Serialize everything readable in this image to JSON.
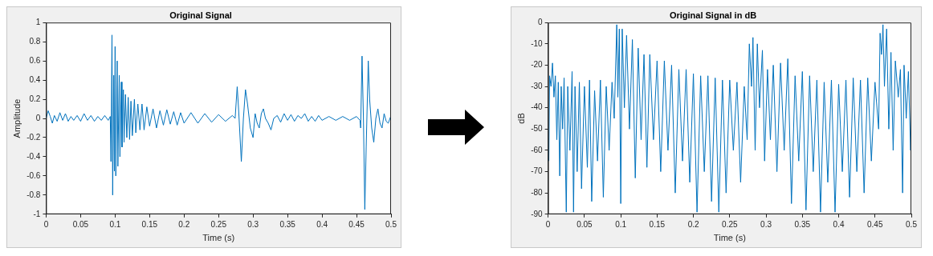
{
  "chart_data": [
    {
      "type": "line",
      "title": "Original Signal",
      "xlabel": "Time (s)",
      "ylabel": "Amplitude",
      "color": "#0072bd",
      "xlim": [
        0,
        0.5
      ],
      "ylim": [
        -1,
        1
      ],
      "xticks": [
        0,
        0.05,
        0.1,
        0.15,
        0.2,
        0.25,
        0.3,
        0.35,
        0.4,
        0.45,
        0.5
      ],
      "yticks": [
        -1,
        -0.8,
        -0.6,
        -0.4,
        -0.2,
        0,
        0.2,
        0.4,
        0.6,
        0.8,
        1
      ],
      "x": [
        0,
        0.003,
        0.006,
        0.009,
        0.012,
        0.016,
        0.02,
        0.024,
        0.028,
        0.032,
        0.036,
        0.04,
        0.045,
        0.05,
        0.055,
        0.06,
        0.065,
        0.07,
        0.075,
        0.08,
        0.085,
        0.09,
        0.093,
        0.094,
        0.0955,
        0.0965,
        0.098,
        0.099,
        0.1,
        0.101,
        0.103,
        0.104,
        0.106,
        0.107,
        0.109,
        0.11,
        0.112,
        0.113,
        0.115,
        0.117,
        0.119,
        0.121,
        0.123,
        0.125,
        0.128,
        0.13,
        0.133,
        0.136,
        0.139,
        0.142,
        0.146,
        0.15,
        0.155,
        0.16,
        0.165,
        0.17,
        0.175,
        0.18,
        0.185,
        0.19,
        0.195,
        0.2,
        0.21,
        0.22,
        0.23,
        0.24,
        0.25,
        0.26,
        0.27,
        0.274,
        0.277,
        0.279,
        0.283,
        0.286,
        0.289,
        0.292,
        0.296,
        0.3,
        0.303,
        0.306,
        0.309,
        0.312,
        0.315,
        0.318,
        0.322,
        0.326,
        0.33,
        0.335,
        0.34,
        0.345,
        0.35,
        0.355,
        0.36,
        0.365,
        0.37,
        0.375,
        0.38,
        0.385,
        0.39,
        0.395,
        0.4,
        0.41,
        0.42,
        0.43,
        0.44,
        0.45,
        0.455,
        0.456,
        0.458,
        0.46,
        0.462,
        0.464,
        0.467,
        0.469,
        0.472,
        0.475,
        0.478,
        0.481,
        0.484,
        0.487,
        0.49,
        0.493,
        0.496,
        0.5
      ],
      "values": [
        0,
        0.08,
        0.02,
        -0.05,
        0.03,
        -0.03,
        0.06,
        -0.02,
        0.05,
        -0.03,
        0.02,
        -0.02,
        0.03,
        -0.03,
        0.05,
        -0.02,
        0.03,
        -0.03,
        0.02,
        -0.02,
        0.03,
        -0.02,
        0.02,
        -0.45,
        0.87,
        -0.8,
        0.45,
        -0.55,
        0.75,
        -0.6,
        0.6,
        -0.5,
        0.45,
        -0.4,
        0.38,
        -0.3,
        0.3,
        -0.25,
        0.25,
        -0.2,
        0.22,
        -0.22,
        0.18,
        -0.18,
        0.2,
        -0.15,
        0.15,
        -0.12,
        0.15,
        -0.12,
        0.12,
        -0.08,
        0.1,
        -0.1,
        0.08,
        -0.07,
        0.09,
        -0.06,
        0.07,
        -0.07,
        0.06,
        -0.05,
        0.06,
        -0.05,
        0.05,
        -0.04,
        0.04,
        -0.03,
        0.03,
        0,
        0.33,
        0.1,
        -0.45,
        0,
        0.3,
        0.15,
        -0.1,
        -0.2,
        0.05,
        -0.05,
        -0.1,
        0.05,
        0.1,
        0,
        -0.05,
        -0.12,
        0,
        0.03,
        -0.04,
        0.05,
        -0.02,
        0.04,
        -0.03,
        0.03,
        0,
        0.05,
        -0.03,
        0.02,
        -0.03,
        0.03,
        -0.02,
        0.02,
        -0.02,
        0.02,
        -0.02,
        0.02,
        -0.02,
        -0.1,
        0.65,
        0,
        -0.95,
        -0.3,
        0.6,
        0.2,
        -0.1,
        -0.25,
        0,
        0.1,
        -0.05,
        -0.1,
        0.05,
        -0.03,
        -0.05,
        0.03
      ]
    },
    {
      "type": "line",
      "title": "Original Signal in dB",
      "xlabel": "Time (s)",
      "ylabel": "dB",
      "color": "#0072bd",
      "xlim": [
        0,
        0.5
      ],
      "ylim": [
        -90,
        0
      ],
      "xticks": [
        0,
        0.05,
        0.1,
        0.15,
        0.2,
        0.25,
        0.3,
        0.35,
        0.4,
        0.45,
        0.5
      ],
      "yticks": [
        -90,
        -80,
        -70,
        -60,
        -50,
        -40,
        -30,
        -20,
        -10,
        0
      ],
      "x": [
        0.001,
        0.002,
        0.004,
        0.006,
        0.008,
        0.01,
        0.012,
        0.014,
        0.016,
        0.018,
        0.02,
        0.022,
        0.025,
        0.027,
        0.03,
        0.033,
        0.035,
        0.037,
        0.04,
        0.043,
        0.046,
        0.05,
        0.054,
        0.057,
        0.06,
        0.064,
        0.068,
        0.072,
        0.076,
        0.08,
        0.084,
        0.088,
        0.091,
        0.0945,
        0.096,
        0.098,
        0.1,
        0.102,
        0.105,
        0.108,
        0.112,
        0.116,
        0.12,
        0.124,
        0.128,
        0.132,
        0.136,
        0.14,
        0.145,
        0.15,
        0.155,
        0.16,
        0.165,
        0.17,
        0.175,
        0.18,
        0.185,
        0.19,
        0.195,
        0.2,
        0.205,
        0.21,
        0.215,
        0.22,
        0.225,
        0.23,
        0.235,
        0.24,
        0.245,
        0.25,
        0.255,
        0.26,
        0.265,
        0.27,
        0.274,
        0.277,
        0.28,
        0.282,
        0.285,
        0.288,
        0.291,
        0.295,
        0.298,
        0.302,
        0.306,
        0.31,
        0.315,
        0.32,
        0.325,
        0.33,
        0.335,
        0.34,
        0.345,
        0.35,
        0.355,
        0.36,
        0.365,
        0.37,
        0.375,
        0.38,
        0.385,
        0.39,
        0.395,
        0.4,
        0.405,
        0.41,
        0.415,
        0.42,
        0.425,
        0.43,
        0.435,
        0.44,
        0.445,
        0.45,
        0.455,
        0.457,
        0.459,
        0.461,
        0.463,
        0.466,
        0.469,
        0.472,
        0.475,
        0.478,
        0.482,
        0.485,
        0.488,
        0.49,
        0.493,
        0.496,
        0.499,
        0.5
      ],
      "values": [
        -65,
        -25,
        -30,
        -19,
        -35,
        -25,
        -55,
        -28,
        -72,
        -30,
        -50,
        -26,
        -89,
        -30,
        -60,
        -23,
        -89,
        -30,
        -70,
        -28,
        -78,
        -30,
        -68,
        -27,
        -84,
        -32,
        -65,
        -27,
        -82,
        -30,
        -60,
        -28,
        -45,
        -1,
        -35,
        -3,
        -85,
        -3,
        -40,
        -6,
        -50,
        -8,
        -73,
        -12,
        -55,
        -15,
        -68,
        -15,
        -55,
        -18,
        -70,
        -18,
        -60,
        -20,
        -80,
        -22,
        -65,
        -22,
        -75,
        -24,
        -89,
        -25,
        -70,
        -25,
        -84,
        -26,
        -89,
        -27,
        -80,
        -27,
        -60,
        -28,
        -75,
        -30,
        -55,
        -10,
        -30,
        -7,
        -60,
        -10,
        -40,
        -13,
        -65,
        -22,
        -55,
        -20,
        -70,
        -19,
        -60,
        -17,
        -85,
        -25,
        -65,
        -23,
        -88,
        -25,
        -70,
        -27,
        -89,
        -28,
        -75,
        -27,
        -89,
        -29,
        -70,
        -27,
        -82,
        -26,
        -70,
        -27,
        -80,
        -26,
        -65,
        -28,
        -50,
        -5,
        -15,
        -1,
        -30,
        -3,
        -50,
        -14,
        -60,
        -18,
        -35,
        -22,
        -80,
        -20,
        -45,
        -23,
        -60,
        -25
      ]
    }
  ]
}
